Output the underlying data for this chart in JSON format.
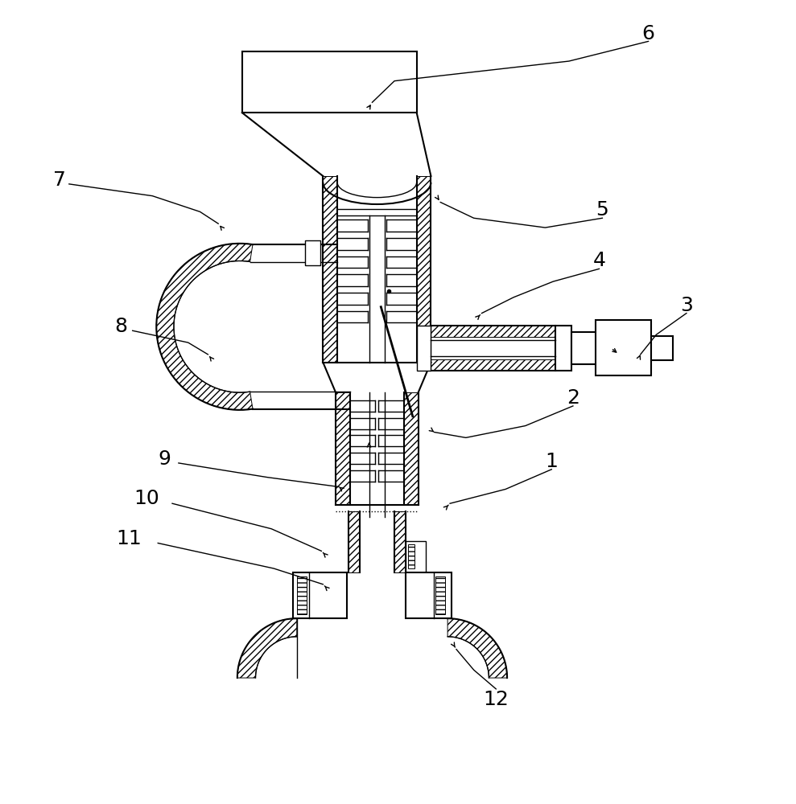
{
  "bg_color": "#ffffff",
  "line_color": "#000000",
  "label_color": "#000000",
  "figsize": [
    9.89,
    10.0
  ],
  "dpi": 100,
  "lw_main": 1.5,
  "lw_thin": 1.0,
  "lw_hatch": 0.7,
  "label_fontsize": 18,
  "hatch_density": "////"
}
